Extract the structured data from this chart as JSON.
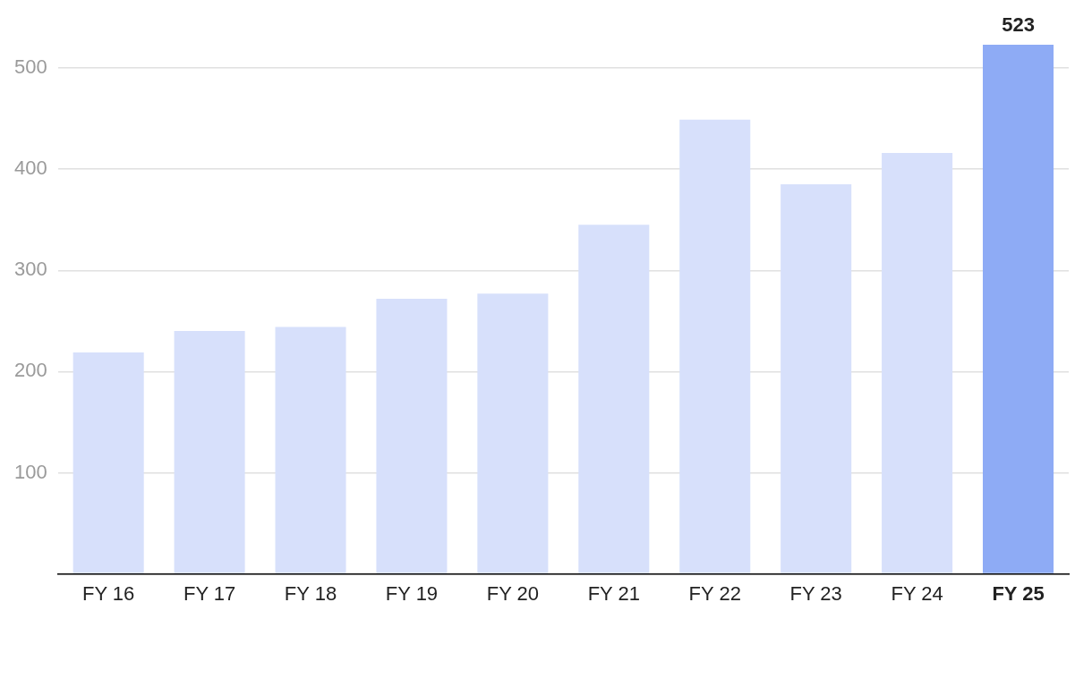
{
  "chart_data": {
    "type": "bar",
    "categories": [
      "FY 16",
      "FY 17",
      "FY 18",
      "FY 19",
      "FY 20",
      "FY 21",
      "FY 22",
      "FY 23",
      "FY 24",
      "FY 25"
    ],
    "values": [
      219,
      240,
      244,
      272,
      277,
      345,
      449,
      385,
      416,
      523
    ],
    "colors": [
      "#d7e0fb",
      "#d7e0fb",
      "#d7e0fb",
      "#d7e0fb",
      "#d7e0fb",
      "#d7e0fb",
      "#d7e0fb",
      "#d7e0fb",
      "#d7e0fb",
      "#8eabf5"
    ],
    "value_labels": [
      null,
      null,
      null,
      null,
      null,
      null,
      null,
      null,
      null,
      "523"
    ],
    "ylim": [
      0,
      523
    ],
    "yticks": [
      {
        "value": 0,
        "label": null
      },
      100,
      200,
      300,
      400,
      500
    ],
    "grid": "y",
    "legend": false
  }
}
